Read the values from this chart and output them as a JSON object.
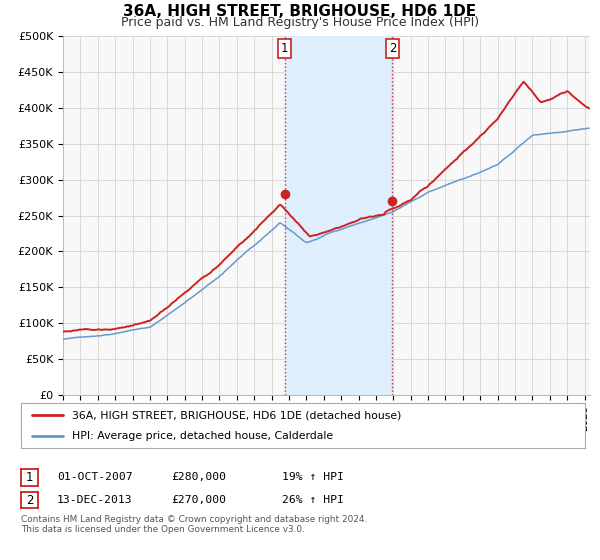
{
  "title": "36A, HIGH STREET, BRIGHOUSE, HD6 1DE",
  "subtitle": "Price paid vs. HM Land Registry's House Price Index (HPI)",
  "ylim": [
    0,
    500000
  ],
  "yticks": [
    0,
    50000,
    100000,
    150000,
    200000,
    250000,
    300000,
    350000,
    400000,
    450000,
    500000
  ],
  "ytick_labels": [
    "£0",
    "£50K",
    "£100K",
    "£150K",
    "£200K",
    "£250K",
    "£300K",
    "£350K",
    "£400K",
    "£450K",
    "£500K"
  ],
  "xlim_start": 1995.0,
  "xlim_end": 2025.3,
  "xticks": [
    1995,
    1996,
    1997,
    1998,
    1999,
    2000,
    2001,
    2002,
    2003,
    2004,
    2005,
    2006,
    2007,
    2008,
    2009,
    2010,
    2011,
    2012,
    2013,
    2014,
    2015,
    2016,
    2017,
    2018,
    2019,
    2020,
    2021,
    2022,
    2023,
    2024,
    2025
  ],
  "hpi_color": "#6699cc",
  "price_color": "#cc2222",
  "marker_color": "#cc2222",
  "annotation_line_color": "#cc3333",
  "shade_color": "#ddeeff",
  "bg_color": "#f8f8f8",
  "grid_color": "#cccccc",
  "legend_label_price": "36A, HIGH STREET, BRIGHOUSE, HD6 1DE (detached house)",
  "legend_label_hpi": "HPI: Average price, detached house, Calderdale",
  "marker1_x": 2007.75,
  "marker1_y": 280000,
  "marker2_x": 2013.95,
  "marker2_y": 270000,
  "shade_x1": 2007.75,
  "shade_x2": 2013.95,
  "table_row1": [
    "1",
    "01-OCT-2007",
    "£280,000",
    "19% ↑ HPI"
  ],
  "table_row2": [
    "2",
    "13-DEC-2013",
    "£270,000",
    "26% ↑ HPI"
  ],
  "footnote1": "Contains HM Land Registry data © Crown copyright and database right 2024.",
  "footnote2": "This data is licensed under the Open Government Licence v3.0.",
  "title_fontsize": 11,
  "subtitle_fontsize": 9
}
